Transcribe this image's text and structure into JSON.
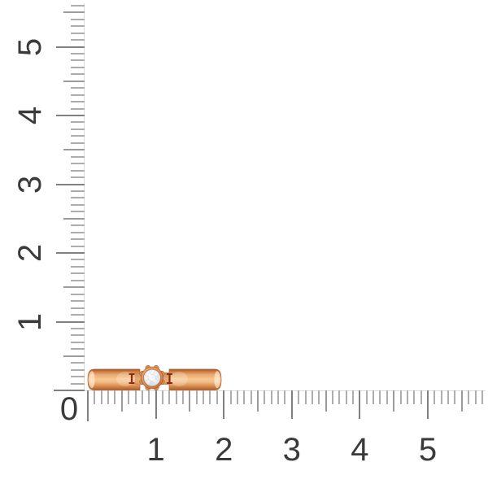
{
  "scene": {
    "background": "#ffffff",
    "subject": "rose-gold ring with round diamond lying on its side at the ruler origin"
  },
  "ruler": {
    "origin_label": "0",
    "horizontal_labels": [
      "1",
      "2",
      "3",
      "4",
      "5"
    ],
    "vertical_labels": [
      "1",
      "2",
      "3",
      "4",
      "5"
    ],
    "subdivisions_per_unit": 10,
    "horizontal_extent_units": 5.8,
    "vertical_extent_units": 5.6,
    "colors": {
      "line": "#dcdcdc",
      "tick_minor": "#adadad",
      "tick_medium": "#9b9b9b",
      "tick_major": "#808080",
      "label": "#3a3a3a"
    }
  },
  "ring": {
    "metal": "rose-gold",
    "stone": "diamond",
    "colors": {
      "band_light": "#f6c794",
      "band_mid": "#e8a365",
      "band_dark": "#b56230",
      "band_edge": "#9e5220",
      "bezel": "#d98e52",
      "engraving": "#8b2d10",
      "stone_light": "#ffffff",
      "stone_mid": "#e9ebf1",
      "stone_edge": "#c7cbd6"
    }
  }
}
